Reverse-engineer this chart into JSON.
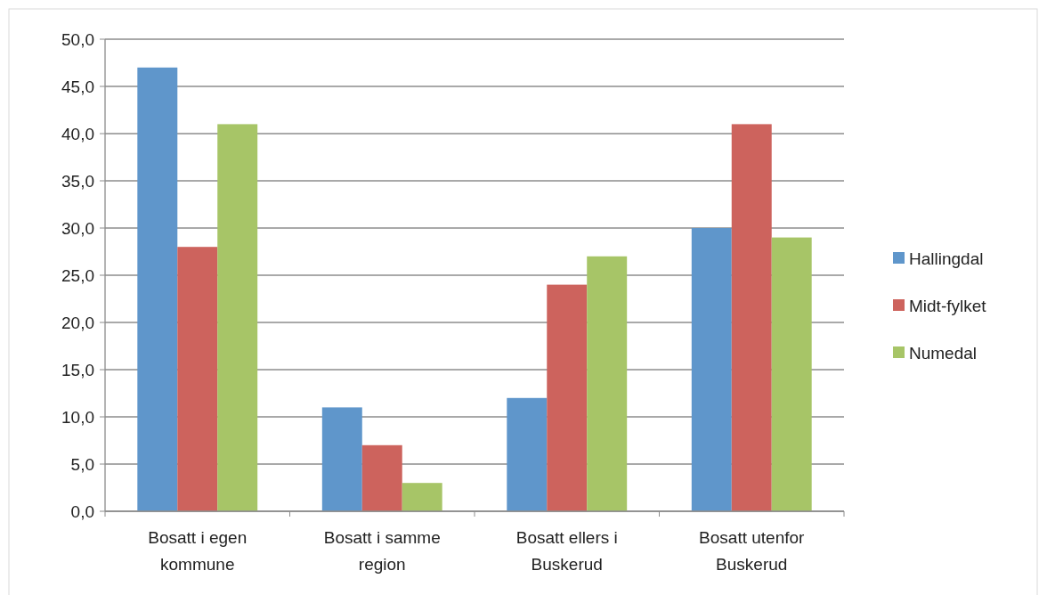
{
  "chart_data": {
    "type": "bar",
    "categories": [
      "Bosatt i egen kommune",
      "Bosatt i samme region",
      "Bosatt ellers i Buskerud",
      "Bosatt utenfor Buskerud"
    ],
    "series": [
      {
        "name": "Hallingdal",
        "color": "#5f96cb",
        "values": [
          47,
          11,
          12,
          30
        ]
      },
      {
        "name": "Midt-fylket",
        "color": "#cd635d",
        "values": [
          28,
          7,
          24,
          41
        ]
      },
      {
        "name": "Numedal",
        "color": "#a7c567",
        "values": [
          41,
          3,
          27,
          29
        ]
      }
    ],
    "ylim": [
      0,
      50
    ],
    "yticks": [
      {
        "value": 0,
        "label": "0,0"
      },
      {
        "value": 5,
        "label": "5,0"
      },
      {
        "value": 10,
        "label": "10,0"
      },
      {
        "value": 15,
        "label": "15,0"
      },
      {
        "value": 20,
        "label": "20,0"
      },
      {
        "value": 25,
        "label": "25,0"
      },
      {
        "value": 30,
        "label": "30,0"
      },
      {
        "value": 35,
        "label": "35,0"
      },
      {
        "value": 40,
        "label": "40,0"
      },
      {
        "value": 45,
        "label": "45,0"
      },
      {
        "value": 50,
        "label": "50,0"
      }
    ],
    "grid": "y",
    "legend": "right"
  }
}
